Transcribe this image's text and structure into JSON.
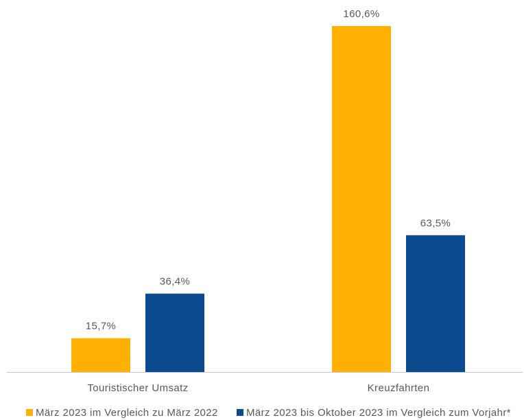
{
  "chart_data": {
    "type": "bar",
    "categories": [
      "Touristischer Umsatz",
      "Kreuzfahrten"
    ],
    "series": [
      {
        "name": "März 2023 im Vergleich zu März 2022",
        "values": [
          15.7,
          160.6
        ],
        "labels": [
          "15,7%",
          "160,6%"
        ],
        "color": "#FFB000"
      },
      {
        "name": "März 2023 bis Oktober 2023 im Vergleich zum Vorjahr*",
        "values": [
          36.4,
          63.5
        ],
        "labels": [
          "36,4%",
          "63,5%"
        ],
        "color": "#0B4A8E"
      }
    ],
    "grid": false,
    "legend_position": "bottom"
  }
}
